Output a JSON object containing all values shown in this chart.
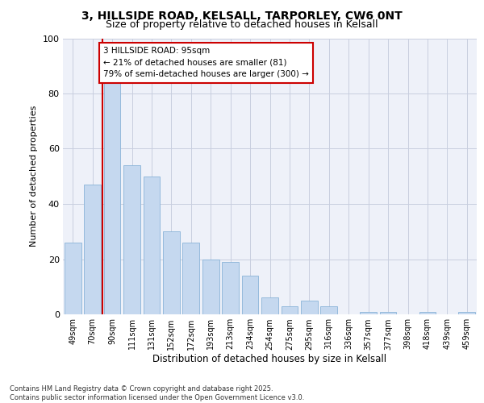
{
  "title_line1": "3, HILLSIDE ROAD, KELSALL, TARPORLEY, CW6 0NT",
  "title_line2": "Size of property relative to detached houses in Kelsall",
  "categories": [
    "49sqm",
    "70sqm",
    "90sqm",
    "111sqm",
    "131sqm",
    "152sqm",
    "172sqm",
    "193sqm",
    "213sqm",
    "234sqm",
    "254sqm",
    "275sqm",
    "295sqm",
    "316sqm",
    "336sqm",
    "357sqm",
    "377sqm",
    "398sqm",
    "418sqm",
    "439sqm",
    "459sqm"
  ],
  "values": [
    26,
    47,
    85,
    54,
    50,
    30,
    26,
    20,
    19,
    14,
    6,
    3,
    5,
    3,
    0,
    1,
    1,
    0,
    1,
    0,
    1
  ],
  "bar_color": "#c5d8ef",
  "bar_edge_color": "#8ab4d8",
  "vline_color": "#cc0000",
  "vline_x_idx": 2,
  "ylabel": "Number of detached properties",
  "xlabel": "Distribution of detached houses by size in Kelsall",
  "ylim": [
    0,
    100
  ],
  "yticks": [
    0,
    20,
    40,
    60,
    80,
    100
  ],
  "annotation_text": "3 HILLSIDE ROAD: 95sqm\n← 21% of detached houses are smaller (81)\n79% of semi-detached houses are larger (300) →",
  "footer": "Contains HM Land Registry data © Crown copyright and database right 2025.\nContains public sector information licensed under the Open Government Licence v3.0.",
  "bg_color": "#ffffff",
  "plot_bg_color": "#eef1f9",
  "grid_color": "#c8cedf"
}
